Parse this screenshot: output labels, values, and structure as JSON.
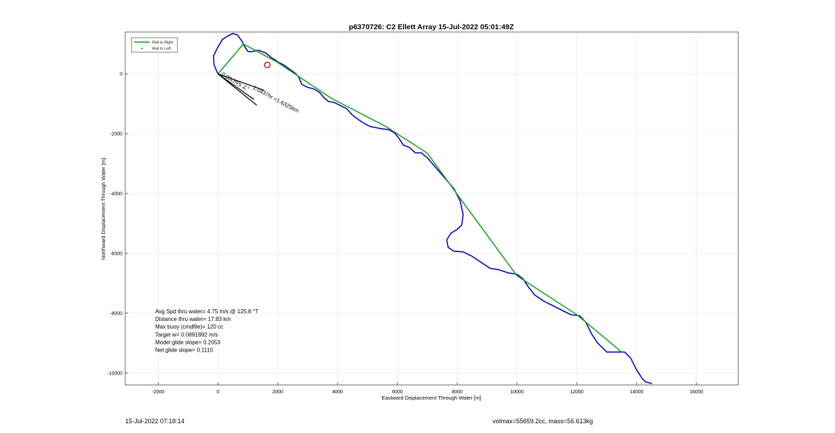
{
  "chart_data": {
    "type": "line",
    "title": "p6370726: C2 Ellett Array 15-Jul-2022 05:01:49Z",
    "xlabel": "Eastward Displacement Through Water [m]",
    "ylabel": "Northward Displacement Through Water [m]",
    "xlim": [
      -3100,
      17400
    ],
    "ylim": [
      -10400,
      1400
    ],
    "xticks": [
      -2000,
      0,
      2000,
      4000,
      6000,
      8000,
      10000,
      12000,
      14000,
      16000
    ],
    "yticks": [
      -10000,
      -8000,
      -6000,
      -4000,
      -2000,
      0
    ],
    "grid": true,
    "legend": {
      "location": "top-left",
      "entries": [
        {
          "label": "Roll to Right",
          "color": "#1aa01a",
          "style": "line"
        },
        {
          "label": "Roll to Left",
          "color": "#000000",
          "style": "dot"
        }
      ]
    },
    "series": [
      {
        "color": "#0000c8",
        "x": [
          0,
          -130,
          -150,
          0,
          150,
          300,
          500,
          650,
          800,
          900,
          1000,
          1100,
          1200,
          1350,
          1600,
          1800,
          1900,
          2000,
          2200,
          2400,
          2550,
          2700,
          2800,
          3000,
          3200,
          3400,
          3550,
          3700,
          3900,
          4100,
          4300,
          4500,
          4700,
          4900,
          5100,
          5300,
          5500,
          5700,
          5900,
          6050,
          6200,
          6400,
          6600,
          6800,
          7000,
          7300,
          7600,
          7900,
          8100,
          8200,
          8150,
          8000,
          7800,
          7650,
          7700,
          7900,
          8200,
          8500,
          8800,
          9100,
          9400,
          9700,
          10000,
          10200,
          10400,
          10600,
          10900,
          11200,
          11500,
          11800,
          12100,
          12300,
          12500,
          12700,
          13000,
          13300,
          13600,
          13800,
          14000,
          14200,
          14300,
          14500
        ],
        "y": [
          0,
          300,
          600,
          900,
          1150,
          1250,
          1350,
          1300,
          1100,
          900,
          750,
          740,
          760,
          790,
          700,
          530,
          480,
          400,
          300,
          150,
          50,
          -100,
          -350,
          -450,
          -500,
          -620,
          -800,
          -920,
          -960,
          -1060,
          -1160,
          -1380,
          -1530,
          -1660,
          -1760,
          -1800,
          -1840,
          -1860,
          -1970,
          -2150,
          -2380,
          -2460,
          -2640,
          -2640,
          -2800,
          -3150,
          -3500,
          -3850,
          -4250,
          -4700,
          -5050,
          -5200,
          -5320,
          -5550,
          -5800,
          -5930,
          -5950,
          -6100,
          -6300,
          -6500,
          -6550,
          -6650,
          -6700,
          -6850,
          -7150,
          -7400,
          -7600,
          -7750,
          -7900,
          -8050,
          -8090,
          -8300,
          -8700,
          -9000,
          -9300,
          -9300,
          -9300,
          -9500,
          -9900,
          -10200,
          -10300,
          -10350
        ]
      },
      {
        "name": "Roll to Right",
        "color": "#1aa01a",
        "x": [
          0,
          850,
          2000,
          3800,
          5600,
          7000,
          8200,
          10000,
          12000,
          13500
        ],
        "y": [
          0,
          1000,
          380,
          -820,
          -1750,
          -2650,
          -4300,
          -6750,
          -8050,
          -9300
        ]
      }
    ],
    "heading_lines": [
      {
        "x": [
          0,
          1550
        ],
        "y": [
          0,
          -550
        ]
      },
      {
        "x": [
          0,
          1300
        ],
        "y": [
          0,
          -1050
        ]
      },
      {
        "x": [
          0,
          1200
        ],
        "y": [
          0,
          -850
        ]
      }
    ],
    "marker": {
      "x": 1650,
      "y": 300,
      "color": "#cc0000"
    },
    "annotations": [
      {
        "text": "Avg Spd thru water=  4.75 m/s @ 125.8 °T",
        "x": -2100,
        "y": -8000
      },
      {
        "text": "Distance thru water= 17.83 km",
        "x": -2100,
        "y": -8260
      },
      {
        "text": "Max buoy (cmdfile)= 120 cc",
        "x": -2100,
        "y": -8520
      },
      {
        "text": "Target w= 0.0891892 m/s",
        "x": -2100,
        "y": -8780
      },
      {
        "text": "Model glide slope= 0.2053",
        "x": -2100,
        "y": -9040
      },
      {
        "text": "Net glide slope= 0.1110",
        "x": -2100,
        "y": -9300
      }
    ],
    "rotated_labels": [
      {
        "text": "0.00cm/s ∠°",
        "x": 100,
        "y": -50,
        "angle": 30
      },
      {
        "text": "1.0437hr =1.6325km",
        "x": 1150,
        "y": -500,
        "angle": 28
      }
    ]
  },
  "footer": {
    "timestamp": "15-Jul-2022 07:18:14",
    "mass_info": "volmax=55659.2cc, mass=56.613kg"
  }
}
